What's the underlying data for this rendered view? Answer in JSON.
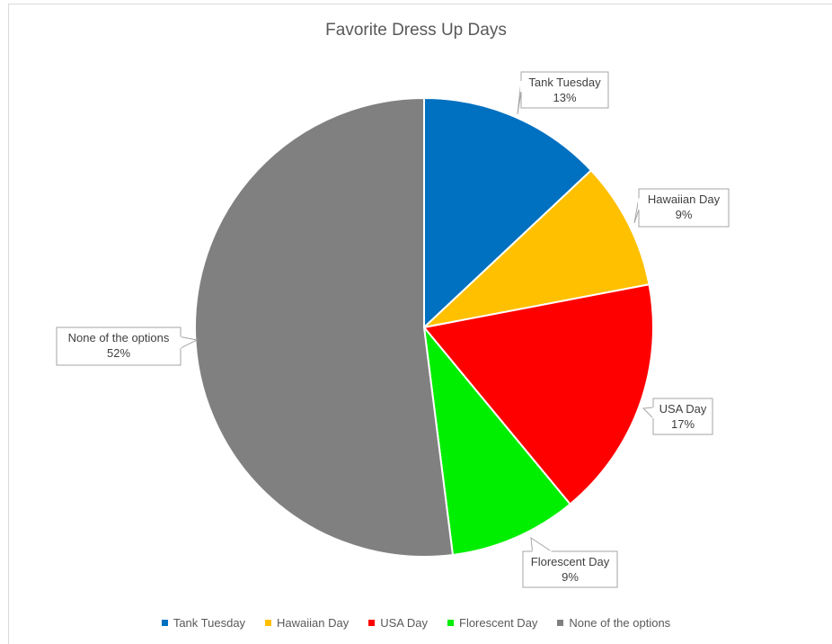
{
  "chart_data": {
    "type": "pie",
    "title": "Favorite Dress Up Days",
    "legend_position": "bottom",
    "slices": [
      {
        "label": "Tank Tuesday",
        "value": 13,
        "display": "13%",
        "color": "#0070c0"
      },
      {
        "label": "Hawaiian Day",
        "value": 9,
        "display": "9%",
        "color": "#ffc000"
      },
      {
        "label": "USA Day",
        "value": 17,
        "display": "17%",
        "color": "#ff0000"
      },
      {
        "label": "Florescent Day",
        "value": 9,
        "display": "9%",
        "color": "#00ee00"
      },
      {
        "label": "None of the options",
        "value": 52,
        "display": "52%",
        "color": "#808080"
      }
    ]
  }
}
